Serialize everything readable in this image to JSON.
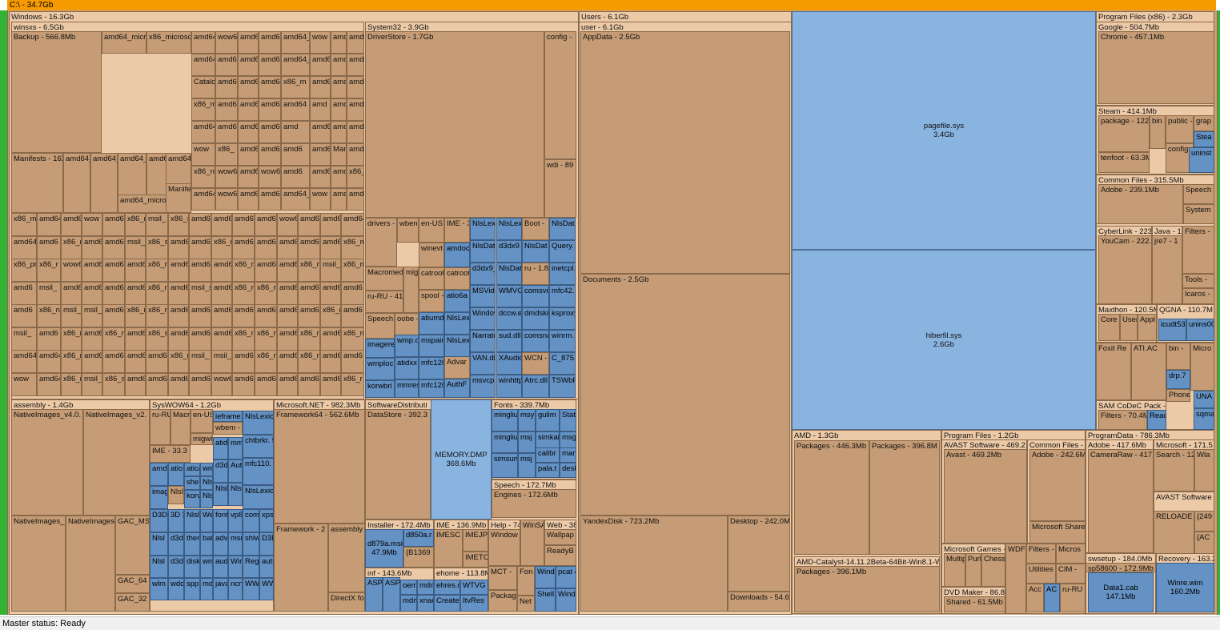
{
  "root": {
    "label": "C:\\ - 34.7Gb"
  },
  "status": {
    "text": "Master status: Ready"
  },
  "colors": {
    "folder": "#c59c75",
    "file": "#8ab4e0",
    "small_file": "#6592c4",
    "root_bar": "#f59a00",
    "side_bar": "#34b233"
  },
  "nodes": {
    "windows": "Windows - 16.3Gb",
    "winsxs": "winsxs - 6.5Gb",
    "backup": "Backup - 566.8Mb",
    "manifests": "Manifests - 162",
    "system32": "System32 - 3.9Gb",
    "driverstore": "DriverStore - 1.7Gb",
    "config": "config -",
    "wdi": "wdi - 89",
    "drivers": "drivers -",
    "wben": "wben",
    "enus": "en-US",
    "ime": "IME - 3",
    "macromed": "Macromed",
    "rurus": "ru-RU - 41",
    "speech": "Speech",
    "oobe": "oobe -",
    "winevt": "winevt",
    "catroot": "catroot",
    "catroot2": "catroot",
    "spool": "spool -",
    "assembly": "assembly - 1.4Gb",
    "nativeimages4": "NativeImages_v4.0.",
    "nativeimages2": "NativeImages_v2.",
    "nativeimages_a": "NativeImages_",
    "nativeimages_b": "NativeImages",
    "gacms": "GAC_MS",
    "gac64": "GAC_64",
    "gac32": "GAC_32",
    "syswow64": "SysWOW64 - 1.2Gb",
    "ime33": "IME - 33.3",
    "microsoftnet": "Microsoft.NET - 982.3Mb",
    "framework64": "Framework64 - 562.6Mb",
    "framework": "Framework - 2",
    "assembly2": "assembly",
    "directx": "DirectX fo",
    "softdist": "SoftwareDistributi",
    "datastore": "DataStore - 392.3",
    "memorydmp": "MEMORY.DMP\n368.6Mb",
    "fonts": "Fonts - 339.7Mb",
    "speech2": "Speech - 172.7Mb",
    "engines": "Engines - 172.6Mb",
    "installer": "Installer - 172.4Mb",
    "d879a": "d879a.msi\n47.9Mb",
    "d850a": "d850a.r",
    "b1369": "{B1369",
    "ime136": "IME - 136.9Mb",
    "imesc": "IMESC",
    "imejp": "IMEJP",
    "imetc": "IMETC",
    "help": "Help - 74",
    "windows2": "Window",
    "winsa": "WinSA",
    "web": "Web - 38",
    "wallpaper": "Wallpap",
    "readyboot": "ReadyB",
    "inf": "inf - 143.6Mb",
    "ehome": "ehome - 113.8M",
    "mct": "MCT -",
    "fon": "Fon",
    "packages": "Packag",
    "net": "Net",
    "users": "Users - 6.1Gb",
    "user": "user - 6.1Gb",
    "appdata": "AppData - 2.5Gb",
    "documents": "Documents - 2.5Gb",
    "yandexdisk": "YandexDisk - 723.2Mb",
    "desktop": "Desktop - 242.0M",
    "downloads": "Downloads - 54.6",
    "pagefile": "pagefile.sys\n3.4Gb",
    "hiberfil": "hiberfil.sys\n2.6Gb",
    "amd": "AMD - 1.3Gb",
    "amdpkg1": "Packages - 446.3Mb",
    "amdpkg2": "Packages - 396.8M",
    "amdcat": "AMD-Catalyst-14.11.2Beta-64Bit-Win8.1-W",
    "amdcatpkg": "Packages - 396.1Mb",
    "pf": "Program Files - 1.2Gb",
    "avastsw": "AVAST Software - 469.2",
    "avast": "Avast - 469.2Mb",
    "commonfiles": "Common Files -",
    "adobe2": "Adobe - 242.6M",
    "msshared": "Microsoft Share",
    "msgames": "Microsoft Games -",
    "multip": "Multip",
    "purl": "Purl",
    "chess": "Chess",
    "wdf": "WDF",
    "filters": "Filters -",
    "micros": "Micros",
    "utilities": "Utilities",
    "cim": "CIM -",
    "dvdmaker": "DVD Maker - 86.8",
    "shared": "Shared - 61.5Mb",
    "acc": "Acc",
    "rurus2": "ru-RU",
    "pdata": "ProgramData - 786.3Mb",
    "adobe3": "Adobe - 417.6Mb",
    "cameraraw": "CameraRaw - 417",
    "microsoft171": "Microsoft - 171.5",
    "search": "Search - 12",
    "wla": "Wla",
    "avastsw2": "AVAST Software",
    "reloaded": "RELOADE\nRLD! - 60.",
    "c249": "{249",
    "ac": "{AC",
    "swsetup": "swsetup - 184.0Mb",
    "sp58600": "sp58600 - 172.9Mb",
    "data1": "Data1.cab\n147.1Mb",
    "recovery": "Recovery - 163.2",
    "winre": "Winre.wim\n160.2Mb",
    "pfx86": "Program Files (x86) - 2.3Gb",
    "google": "Google - 504.7Mb",
    "chrome": "Chrome - 457.1Mb",
    "steam": "Steam - 414.1Mb",
    "steampkg": "package - 122.",
    "steambin": "bin -",
    "steampublic": "public -",
    "steamgrap": "grap",
    "steamstea": "Stea",
    "tenfoot": "tenfoot - 63.3M",
    "steamconfig": "config",
    "uninst": "uninst\n204Kb",
    "commonx86": "Common Files - 315.5Mb",
    "adobe239": "Adobe - 239.1Mb",
    "speech3": "Speech",
    "system": "System",
    "cyberlink": "CyberLink - 223",
    "youcam": "YouCam - 222.",
    "java": "Java - 1",
    "jre7": "jre7 - 1",
    "filters2": "Filters -",
    "tools": "Tools -",
    "icaros": "Icaros -",
    "maxthon": "Maxthon - 120.5M",
    "core": "Core",
    "user2": "User",
    "appl": "Appl",
    "qgna": "QGNA - 110.7M",
    "icudt": "icudt53\n20.5Mb",
    "unins": "unins00\n104Kb",
    "foxit": "Foxit Re",
    "atiac": "ATI.AC",
    "bin2": "bin -",
    "micro2": "Micro",
    "drp": "drp.7",
    "phone": "Phone",
    "una": "UNA",
    "sqma": "sqma",
    "sam": "SAM CoDeC Pack -",
    "samfilters": "Filters - 70.4M",
    "rea": "Reac"
  },
  "winsxs_cells": [
    "amd64_micro",
    "x86_microsof",
    "amd64_",
    "wow6",
    "amd6",
    "amd6",
    "amd64_i",
    "wow",
    "amd",
    "amd",
    "amd64_prnhp",
    "amd64_nv_",
    "amd64_l",
    "amd64",
    "amd64_",
    "amd6",
    "amd",
    "amd64_c",
    "Catalc",
    "amd64_",
    "amd64_",
    "amd64_m",
    "x86_m",
    "amd64",
    "amd6",
    "amd64_",
    "x86_m",
    "amd6",
    "amd6",
    "amd64",
    "amd64",
    "amd",
    "amd64",
    "amd",
    "amd64_",
    "amd64",
    "amd6",
    "amd64",
    "amd",
    "amd64_",
    "amd6",
    "amd64",
    "wow",
    "x86_",
    "amd6",
    "amd6",
    "amd6",
    "amd64_micros",
    "Manifes",
    "amd64",
    "x86_n",
    "wow64",
    "amd6",
    "wow6",
    "amd6",
    "amd6"
  ],
  "winsxs_grid": [
    "x86_m",
    "amd64",
    "amd6",
    "wow",
    "amd64",
    "x86_n",
    "msil_",
    "x86_s",
    "amd6",
    "amd64",
    "amd6",
    "amd64",
    "wow6",
    "amd6",
    "amd6",
    "amd64",
    "amd64",
    "amd6",
    "x86_r",
    "amd64",
    "amd64",
    "msil_",
    "x86_s",
    "amd6",
    "amd64",
    "x86_n",
    "amd64",
    "amd6",
    "amd6",
    "amd6",
    "amd64",
    "x86_m",
    "x86_pr",
    "x86_r",
    "wow6",
    "amd64",
    "amd6",
    "amd6",
    "x86_m",
    "amd6",
    "amd6",
    "amd6",
    "x86_n",
    "amd6",
    "amd6",
    "x86_m",
    "msil_",
    "x86_n",
    "amd6",
    "msil_",
    "amd6",
    "amd6",
    "amd6",
    "amd6",
    "x86_n",
    "amd6",
    "msil_s",
    "amd6",
    "x86_m",
    "x86_ne",
    "amd6",
    "amd64",
    "amd6",
    "amd6",
    "amd6",
    "x86_n",
    "msil_r",
    "msil_s",
    "amd6",
    "x86_n",
    "x86_ne",
    "amd64",
    "amd64",
    "amd64",
    "amd6",
    "amd6",
    "amd6",
    "amd6",
    "x86_m",
    "amd6",
    "msil_",
    "amd6",
    "x86_n",
    "amd64",
    "x86_n",
    "amd64",
    "x86_s",
    "amd6",
    "amd6",
    "amd6",
    "x86_n",
    "x86_n",
    "amd6",
    "x86_m",
    "amd6",
    "x86_n",
    "amd64",
    "amd64",
    "x86_m",
    "amd6",
    "amd6",
    "amd6",
    "amd6",
    "x86_m",
    "msil_",
    "msil_",
    "amd6",
    "x86_n",
    "amd6"
  ],
  "s32_files": [
    "NlsLexic\n4.7Mb",
    "NlsLex\n3.9Mb",
    "Boot - ",
    "NlsDat\n2Mb",
    "amdocl\n32.3Mb",
    "NlsDat\n4.4Mb",
    "d3dx9\n3.7Mb",
    "NlsDat\n2.3Mb",
    "Query.\n1.9Mb",
    "d3dx9_\n3.6Mb",
    "NlsDat\n3.0Mb",
    "ru - 1.8",
    "inetcpl.\n1.4Mb",
    "atio6a\n27.0M",
    "MSVide\n3.4Mb",
    "WMVC\n2.8Mb",
    "comsvc\n1.6Mb",
    "mfc42.\n1.3Mb",
    "atiumd\n7.9Mb",
    "NlsLex\n5.9Mb",
    "Windov\n1.1Mb",
    "dccw.e\n864Kb",
    "dmdskr\n364Kb",
    "ksproxy\n248Kb",
    "imagere",
    "wmp.d\n13.9M",
    "mspaint",
    "NlsLex",
    "Narrato\n1.0Mb",
    "sud.dll\n752Kb",
    "comsna\n300Kb",
    "winrm.\n200Kb",
    "wmploc\n12.0M",
    "atidxx\n10.3M",
    "mfc120\n5.3Mb",
    "Advar",
    "VAN.dl\n676Kb",
    "XAudio\n500Kb",
    "WCN -",
    "C_875.\n68Kb",
    "korwbri",
    "mmres.",
    "mfc120",
    "AuthF\n4.8Mb",
    "msvcp6\n584Kb",
    "winhttp\n436Kb",
    "Atrc.dll\n104Kb",
    "TSWbPr\n4Kb"
  ],
  "wow_cells": [
    "ru-RU",
    "Macr",
    "en-US",
    "ieframe.",
    "NlsLexic\n6.5Mb",
    "wbem -",
    "migwi",
    "atid\n8.8M",
    "mmc\n8.8M",
    "chtbrkr.\n5.8Mb",
    "amd\n27.4",
    "atio\n22.5",
    "atica",
    "wm",
    "d3d\n5.2M",
    "Aut\n4.8M",
    "mfc110.\n4.2Mb",
    "shel",
    "Nlsl",
    "Nlsl\n4.8M",
    "Nlsl\n4.7M",
    "NlsLexic\n3.9Mb",
    "imag\n19.3",
    "Win",
    "korv\n11.4",
    "Nlsl\n3.5M",
    "Nlsl\n3.4M",
    "D3D\n3.5M",
    "3D\n3.5M",
    "Nlsl\n2.9M",
    "Web\n2.5M",
    "font\n812",
    "vp8\n548",
    "comp\n476",
    "xpsr\n3.2M",
    "Nlsl\n3.1M",
    "d3d\n2.2M",
    "ther\n2.0M",
    "batr\n728",
    "adv\n628",
    "msn\n416",
    "shlw\n344",
    "D3D\n1.9M",
    "Nlsl\n1.8M",
    "d3d\n1.4M",
    "disk\n1.3M",
    "wm\n296",
    "aud\n240",
    "Win\n192",
    "Reg\n84K",
    "auth\n1.7M",
    "wlm\n1.5M",
    "wdc\n1.1M",
    "spp\n1.0M",
    "mdi\n204",
    "java\n172",
    "ncry\n60K",
    "WW\n4Kb"
  ],
  "font_files": [
    "mingliu\n32.2M",
    "msy\n20.7",
    "gulim\n12.8M",
    "Stat",
    "mingliu",
    "msj\n20.6",
    "simkai",
    "msg",
    "simsun\n14.6M",
    "msj\n13.8",
    "calibr",
    "mang",
    "pala.t",
    "deskt"
  ],
  "inf_files": [
    "ASP",
    "ASP",
    "oem",
    "mdm",
    "mdm",
    "xnac",
    "Windo\n20Kb",
    "pcat\n44Kb",
    "Windo\n4Kb",
    "Shell",
    "ehres.d",
    "WTVG",
    "Create",
    "ItvRes"
  ]
}
